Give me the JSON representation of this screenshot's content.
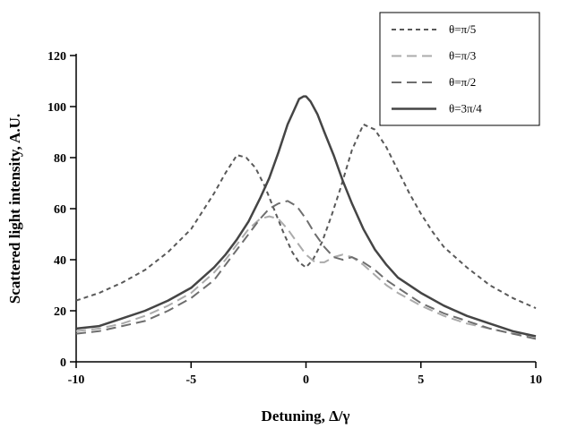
{
  "chart_data": {
    "type": "line",
    "title": "",
    "xlabel": "Detuning, Δ/γ",
    "ylabel": "Scattered light intensity, A.U.",
    "xlim": [
      -10,
      10
    ],
    "ylim": [
      0,
      120
    ],
    "x_ticks": [
      -10,
      -5,
      0,
      5,
      10
    ],
    "y_ticks": [
      0,
      20,
      40,
      60,
      80,
      100,
      120
    ],
    "grid": false,
    "legend_position": "top-right",
    "axis_color": "#000000",
    "background_color": "#ffffff",
    "series": [
      {
        "name": "θ=π/5",
        "color": "#595959",
        "dash": "5,4",
        "width": 2,
        "x": [
          -10,
          -9,
          -8,
          -7,
          -6,
          -5,
          -4.5,
          -4,
          -3.5,
          -3,
          -2.6,
          -2.2,
          -1.8,
          -1.4,
          -1,
          -0.6,
          -0.3,
          0,
          0.3,
          0.7,
          1.1,
          1.5,
          2,
          2.5,
          3,
          3.5,
          4,
          4.5,
          5,
          5.5,
          6,
          7,
          8,
          9,
          10
        ],
        "y": [
          24,
          27,
          31,
          36,
          43,
          52,
          59,
          66,
          74,
          81,
          80,
          76,
          69,
          60,
          51,
          43,
          39,
          37,
          40,
          47,
          57,
          68,
          83,
          93,
          91,
          84,
          75,
          66,
          58,
          51,
          45,
          37,
          30,
          25,
          21
        ]
      },
      {
        "name": "θ=π/3",
        "color": "#ababab",
        "dash": "11,6",
        "width": 2,
        "x": [
          -10,
          -9,
          -8,
          -7,
          -6,
          -5,
          -4,
          -3.5,
          -3,
          -2.5,
          -2,
          -1.6,
          -1.2,
          -0.8,
          -0.4,
          0,
          0.4,
          0.8,
          1.2,
          1.6,
          2,
          2.5,
          3,
          3.5,
          4,
          5,
          6,
          7,
          8,
          9,
          10
        ],
        "y": [
          12,
          13,
          15,
          18,
          22,
          27,
          35,
          40,
          46,
          52,
          56,
          57,
          56,
          52,
          47,
          42,
          39,
          39,
          41,
          42,
          41,
          38,
          34,
          30,
          27,
          22,
          18,
          15,
          13,
          11,
          10
        ]
      },
      {
        "name": "θ=π/2",
        "color": "#6e6e6e",
        "dash": "11,6",
        "width": 2,
        "x": [
          -10,
          -9,
          -8,
          -7,
          -6,
          -5,
          -4,
          -3.5,
          -3,
          -2.5,
          -2,
          -1.6,
          -1.2,
          -0.8,
          -0.4,
          0,
          0.4,
          0.8,
          1.2,
          1.6,
          2,
          2.5,
          3,
          3.5,
          4,
          5,
          6,
          7,
          8,
          9,
          10
        ],
        "y": [
          11,
          12,
          14,
          16,
          20,
          25,
          32,
          38,
          44,
          50,
          56,
          60,
          62,
          63,
          61,
          56,
          50,
          45,
          41,
          40,
          41,
          39,
          36,
          32,
          29,
          23,
          19,
          16,
          13,
          11,
          9
        ]
      },
      {
        "name": "θ=3π/4",
        "color": "#454545",
        "dash": "",
        "width": 2.5,
        "x": [
          -10,
          -9,
          -8,
          -7,
          -6,
          -5,
          -4,
          -3.5,
          -3,
          -2.5,
          -2,
          -1.6,
          -1.2,
          -0.8,
          -0.5,
          -0.3,
          -0.1,
          0,
          0.2,
          0.5,
          0.8,
          1.2,
          1.6,
          2,
          2.5,
          3,
          3.5,
          4,
          5,
          6,
          7,
          8,
          9,
          10
        ],
        "y": [
          13,
          14,
          17,
          20,
          24,
          29,
          37,
          42,
          48,
          55,
          64,
          72,
          82,
          93,
          99,
          103,
          104,
          104,
          102,
          97,
          90,
          81,
          71,
          62,
          52,
          44,
          38,
          33,
          27,
          22,
          18,
          15,
          12,
          10
        ]
      }
    ]
  }
}
